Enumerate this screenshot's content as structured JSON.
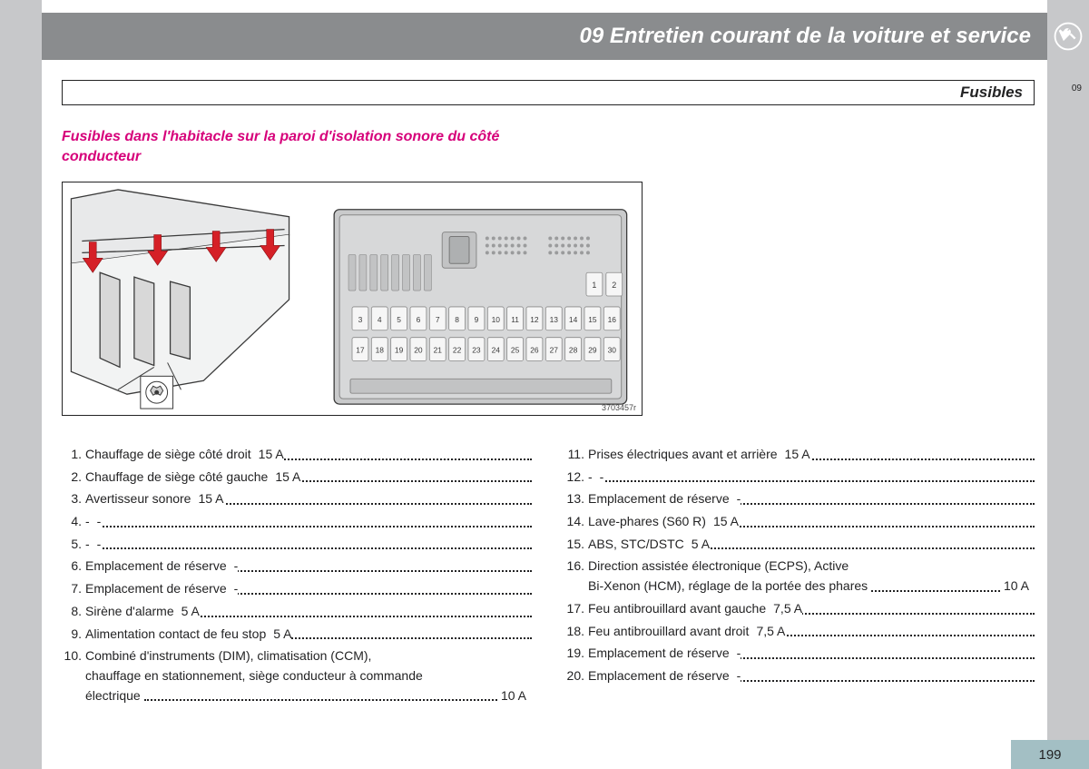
{
  "header": {
    "chapter_num": "09",
    "title": "09 Entretien courant de la voiture et service"
  },
  "subheading": "Fusibles",
  "section_title": "Fusibles dans l'habitacle sur la paroi d'isolation sonore du côté conducteur",
  "diagram": {
    "id_label": "3703457r",
    "fuse_numbers_top": [
      "1",
      "2"
    ],
    "fuse_numbers_mid": [
      "3",
      "4",
      "5",
      "6",
      "7",
      "8",
      "9",
      "10",
      "11",
      "12",
      "13",
      "14",
      "15",
      "16"
    ],
    "fuse_numbers_bot": [
      "17",
      "18",
      "19",
      "20",
      "21",
      "22",
      "23",
      "24",
      "25",
      "26",
      "27",
      "28",
      "29",
      "30"
    ]
  },
  "fuses_left": [
    {
      "n": "1.",
      "label": "Chauffage de siège côté droit",
      "amp": "15 A"
    },
    {
      "n": "2.",
      "label": "Chauffage de siège côté gauche",
      "amp": "15 A"
    },
    {
      "n": "3.",
      "label": "Avertisseur sonore",
      "amp": "15 A"
    },
    {
      "n": "4.",
      "label": "-",
      "amp": "-"
    },
    {
      "n": "5.",
      "label": "-",
      "amp": "-"
    },
    {
      "n": "6.",
      "label": "Emplacement de réserve",
      "amp": "-"
    },
    {
      "n": "7.",
      "label": "Emplacement de réserve",
      "amp": "-"
    },
    {
      "n": "8.",
      "label": "Sirène d'alarme",
      "amp": "5 A"
    },
    {
      "n": "9.",
      "label": "Alimentation contact de feu stop",
      "amp": "5 A"
    },
    {
      "n": "10.",
      "label": "Combiné d'instruments (DIM), climatisation (CCM), chauffage en stationnement, siège conducteur à commande électrique",
      "amp": "10 A",
      "multiline": true,
      "lines": [
        "Combiné d'instruments (DIM), climatisation (CCM),",
        "chauffage en stationnement, siège conducteur à commande",
        "électrique"
      ]
    }
  ],
  "fuses_right": [
    {
      "n": "11.",
      "label": "Prises électriques avant et arrière",
      "amp": "15 A"
    },
    {
      "n": "12.",
      "label": "-",
      "amp": "-"
    },
    {
      "n": "13.",
      "label": "Emplacement de réserve",
      "amp": "-"
    },
    {
      "n": "14.",
      "label": "Lave-phares (S60 R)",
      "amp": "15 A"
    },
    {
      "n": "15.",
      "label": "ABS, STC/DSTC",
      "amp": "5 A"
    },
    {
      "n": "16.",
      "label": "Direction assistée électronique (ECPS), Active Bi-Xenon (HCM), réglage de la portée des phares",
      "amp": "10 A",
      "multiline": true,
      "lines": [
        "Direction assistée électronique (ECPS), Active",
        "Bi-Xenon (HCM), réglage de la portée des phares"
      ]
    },
    {
      "n": "17.",
      "label": "Feu antibrouillard avant gauche",
      "amp": "7,5 A"
    },
    {
      "n": "18.",
      "label": "Feu antibrouillard avant droit",
      "amp": "7,5 A"
    },
    {
      "n": "19.",
      "label": "Emplacement de réserve",
      "amp": "-"
    },
    {
      "n": "20.",
      "label": "Emplacement de réserve",
      "amp": "-"
    }
  ],
  "page_number": "199",
  "colors": {
    "panel": "#c7c8ca",
    "header": "#8a8c8e",
    "accent": "#d6007a",
    "pagenum_bg": "#a3bfc4",
    "arrow": "#d52027"
  }
}
